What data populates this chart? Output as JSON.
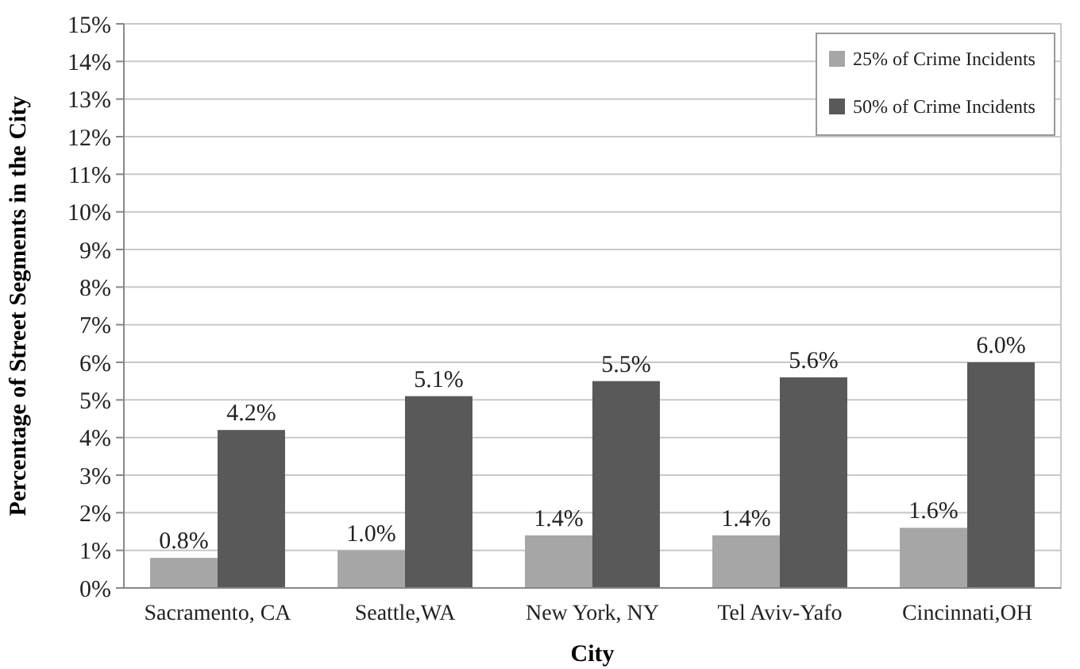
{
  "chart_data": {
    "type": "bar",
    "xlabel": "City",
    "ylabel": "Percentage of Street Segments in the City",
    "categories": [
      "Sacramento, CA",
      "Seattle,WA",
      "New York, NY",
      "Tel Aviv-Yafo",
      "Cincinnati,OH"
    ],
    "series": [
      {
        "name": "25% of Crime Incidents",
        "color": "#a6a6a6",
        "values": [
          0.8,
          1.0,
          1.4,
          1.4,
          1.6
        ],
        "value_labels": [
          "0.8%",
          "1.0%",
          "1.4%",
          "1.4%",
          "1.6%"
        ]
      },
      {
        "name": "50% of Crime Incidents",
        "color": "#595959",
        "values": [
          4.2,
          5.1,
          5.5,
          5.6,
          6.0
        ],
        "value_labels": [
          "4.2%",
          "5.1%",
          "5.5%",
          "5.6%",
          "6.0%"
        ]
      }
    ],
    "ylim": [
      0,
      15
    ],
    "yticks": [
      {
        "value": 0,
        "label": "0%"
      },
      {
        "value": 1,
        "label": "1%"
      },
      {
        "value": 2,
        "label": "2%"
      },
      {
        "value": 3,
        "label": "3%"
      },
      {
        "value": 4,
        "label": "4%"
      },
      {
        "value": 5,
        "label": "5%"
      },
      {
        "value": 6,
        "label": "6%"
      },
      {
        "value": 7,
        "label": "7%"
      },
      {
        "value": 8,
        "label": "8%"
      },
      {
        "value": 9,
        "label": "9%"
      },
      {
        "value": 10,
        "label": "10%"
      },
      {
        "value": 11,
        "label": "11%"
      },
      {
        "value": 12,
        "label": "12%"
      },
      {
        "value": 13,
        "label": "13%"
      },
      {
        "value": 14,
        "label": "14%"
      },
      {
        "value": 15,
        "label": "15%"
      }
    ],
    "grid": "y",
    "legend": "top right"
  }
}
